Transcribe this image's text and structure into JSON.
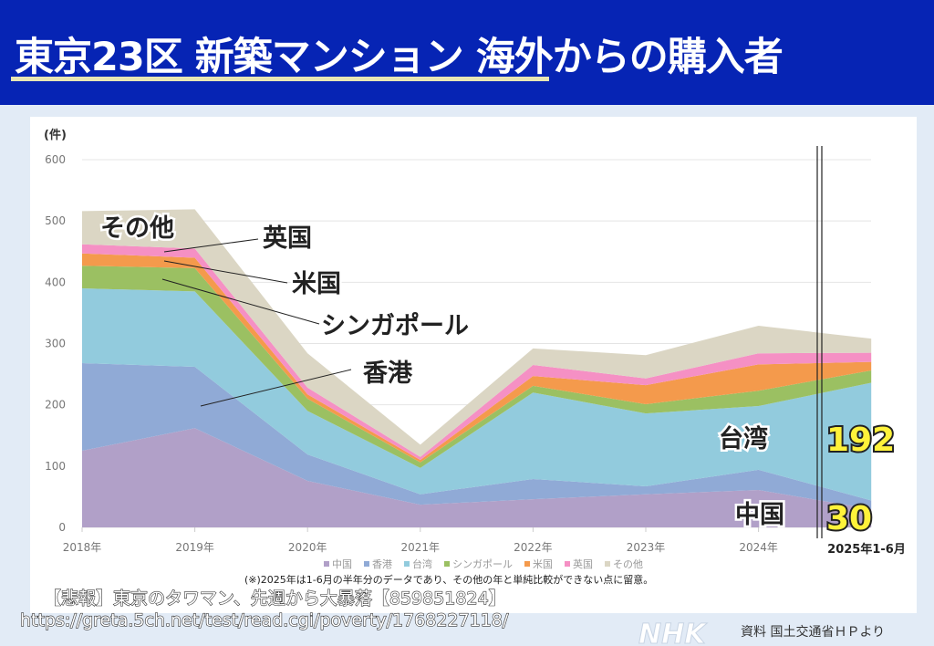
{
  "header": {
    "title": "東京23区 新築マンション 海外からの購入者"
  },
  "chart_data": {
    "type": "area",
    "stacked": true,
    "ylabel": "(件)",
    "ylim": [
      0,
      600
    ],
    "yticks": [
      0,
      100,
      200,
      300,
      400,
      500,
      600
    ],
    "grid": true,
    "categories": [
      "2018年",
      "2019年",
      "2020年",
      "2021年",
      "2022年",
      "2023年",
      "2024年",
      "2025年1-6月"
    ],
    "series": [
      {
        "name": "中国",
        "color": "#b1a0c8",
        "values": [
          125,
          162,
          76,
          37,
          46,
          54,
          61,
          30
        ]
      },
      {
        "name": "香港",
        "color": "#90aad6",
        "values": [
          143,
          100,
          43,
          17,
          33,
          13,
          33,
          14
        ]
      },
      {
        "name": "台湾",
        "color": "#92cbdd",
        "values": [
          122,
          123,
          71,
          43,
          141,
          119,
          104,
          192
        ]
      },
      {
        "name": "シンガポール",
        "color": "#9bc062",
        "values": [
          37,
          38,
          20,
          9,
          11,
          15,
          25,
          20
        ]
      },
      {
        "name": "米国",
        "color": "#f49a4c",
        "values": [
          20,
          17,
          7,
          4,
          16,
          31,
          43,
          14
        ]
      },
      {
        "name": "英国",
        "color": "#f590c4",
        "values": [
          15,
          15,
          11,
          5,
          18,
          11,
          18,
          15
        ]
      },
      {
        "name": "その他",
        "color": "#dbd6c4",
        "values": [
          54,
          64,
          56,
          20,
          27,
          38,
          45,
          23
        ]
      }
    ],
    "legend_position": "bottom",
    "annotations": {
      "other": "その他",
      "uk": "英国",
      "us": "米国",
      "singapore": "シンガポール",
      "hongkong": "香港",
      "taiwan": "台湾",
      "china": "中国",
      "taiwan_value": "192",
      "china_value": "30"
    },
    "note": "(※)2025年は1-6月の半年分のデータであり、その他の年と単純比較ができない点に留意。"
  },
  "overlay": {
    "headline": "【悲報】東京のタワマン、先週から大暴落【859851824】",
    "url": "https://greta.5ch.net/test/read.cgi/poverty/1768227118/"
  },
  "footer": {
    "source": "資料 国土交通省ＨＰより",
    "logo": "NHK"
  }
}
